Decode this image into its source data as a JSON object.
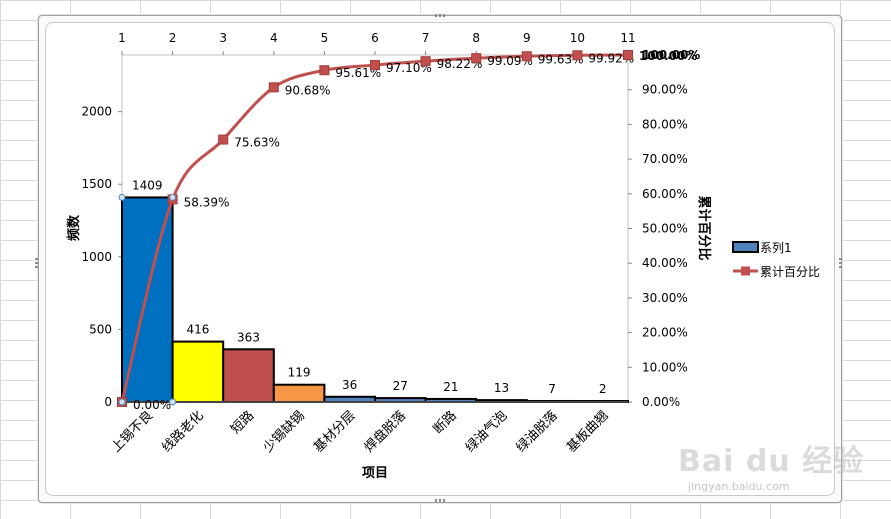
{
  "chart_data": {
    "type": "pareto",
    "categories": [
      "上锡不良",
      "线路老化",
      "短路",
      "少锡缺锡",
      "基材分层",
      "焊盘脱落",
      "断路",
      "绿油气泡",
      "绿油脱落",
      "基板曲翘"
    ],
    "bar_series": {
      "name": "系列1",
      "values": [
        1409,
        416,
        363,
        119,
        36,
        27,
        21,
        13,
        7,
        2
      ],
      "colors": [
        "#0070c0",
        "#ffff00",
        "#c0504d",
        "#f79646",
        "#4f81bd",
        "#4f81bd",
        "#4f81bd",
        "#4f81bd",
        "#4f81bd",
        "#4f81bd"
      ]
    },
    "line_series": {
      "name": "累计百分比",
      "x": [
        1,
        2,
        3,
        4,
        5,
        6,
        7,
        8,
        9,
        10,
        11
      ],
      "values": [
        0,
        58.39,
        75.63,
        90.68,
        95.61,
        97.1,
        98.22,
        99.09,
        99.63,
        99.92,
        100
      ],
      "labels": [
        "0.00%",
        "58.39%",
        "75.63%",
        "90.68%",
        "95.61%",
        "97.10%",
        "98.22%",
        "99.09%",
        "99.63%",
        "99.92%",
        "100.00%"
      ],
      "color": "#c0504d"
    },
    "y_left": {
      "label": "频数",
      "min": 0,
      "max": 2390,
      "ticks": [
        0,
        500,
        1000,
        1500,
        2000
      ]
    },
    "y_right": {
      "label": "累计百分比",
      "min": 0,
      "max": 100,
      "ticks": [
        0,
        10,
        20,
        30,
        40,
        50,
        60,
        70,
        80,
        90,
        100
      ],
      "tick_labels": [
        "0.00%",
        "10.00%",
        "20.00%",
        "30.00%",
        "40.00%",
        "50.00%",
        "60.00%",
        "70.00%",
        "80.00%",
        "90.00%",
        "100.00%"
      ]
    },
    "x_top": {
      "ticks": [
        "1",
        "2",
        "3",
        "4",
        "5",
        "6",
        "7",
        "8",
        "9",
        "10",
        "11"
      ]
    },
    "xlabel": "项目",
    "legend": {
      "position": "right",
      "entries": [
        "系列1",
        "累计百分比"
      ]
    }
  },
  "watermark": {
    "main": "Bai du 经验",
    "sub": "jingyan.baidu.com"
  }
}
